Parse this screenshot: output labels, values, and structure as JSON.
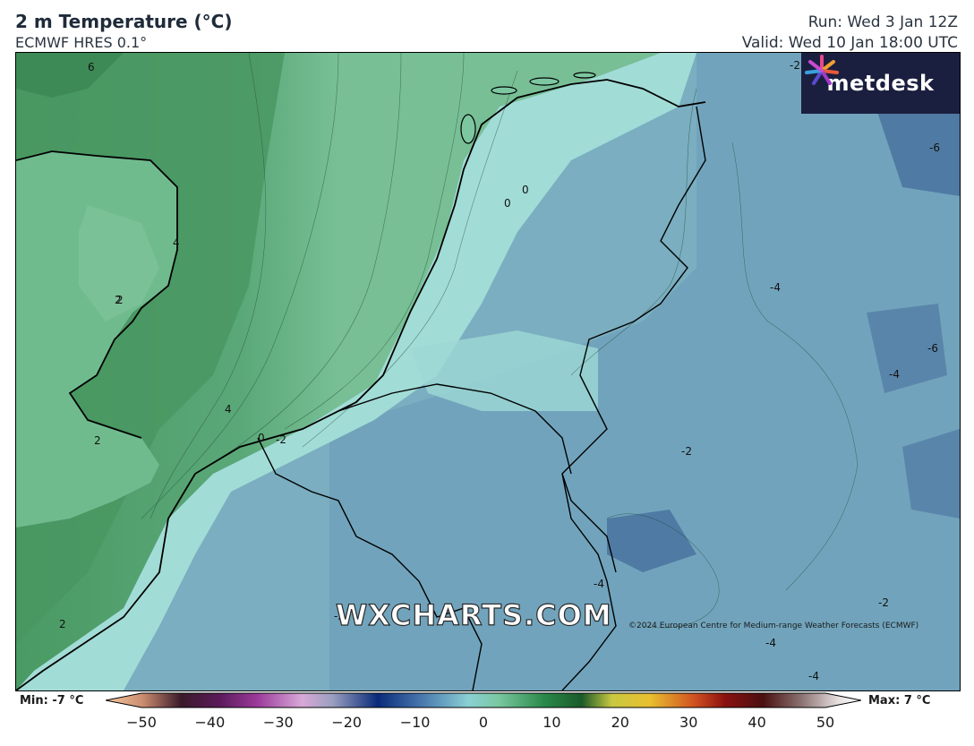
{
  "header": {
    "title": "2 m Temperature (°C)",
    "model": "ECMWF HRES 0.1°",
    "run": "Run: Wed 3 Jan 12Z",
    "valid": "Valid: Wed 10 Jan 18:00 UTC"
  },
  "branding": {
    "logo_text": "metdesk",
    "logo_bg": "#1b1f3f",
    "watermark": "WXCHARTS.COM",
    "copyright": "©2024 European Centre for Medium-range Weather Forecasts (ECMWF)"
  },
  "colorbar": {
    "min_label": "Min: -7 °C",
    "max_label": "Max: 7 °C",
    "range": [
      -50,
      50
    ],
    "ticks": [
      "−50",
      "−40",
      "−30",
      "−20",
      "−10",
      "0",
      "10",
      "20",
      "30",
      "40",
      "50"
    ],
    "tick_values": [
      -50,
      -40,
      -30,
      -20,
      -10,
      0,
      10,
      20,
      30,
      40,
      50
    ]
  },
  "contour_labels": [
    "6",
    "4",
    "2",
    "2",
    "4",
    "2",
    "0",
    "-2",
    "0",
    "0",
    "-4",
    "-6",
    "-6",
    "-4",
    "-2",
    "-2",
    "-4",
    "-2",
    "-4",
    "-4",
    "2",
    "-2"
  ]
}
